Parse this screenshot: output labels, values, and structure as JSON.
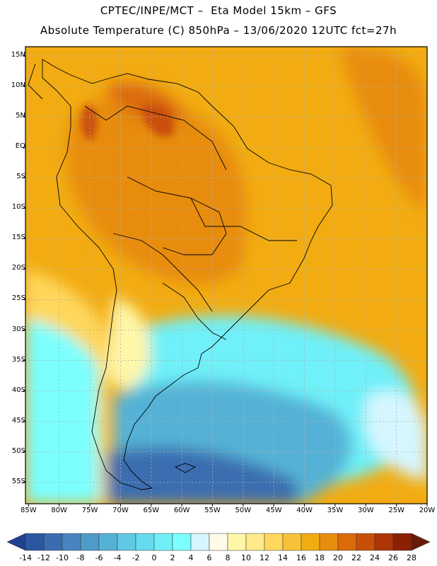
{
  "title": {
    "line1": "CPTEC/INPE/MCT –  Eta Model 15km – GFS",
    "line2": "Absolute Temperature (C) 850hPa – 13/06/2020 12UTC fct=27h"
  },
  "map": {
    "lat_labels": [
      "15N",
      "10N",
      "5N",
      "EQ",
      "5S",
      "10S",
      "15S",
      "20S",
      "25S",
      "30S",
      "35S",
      "40S",
      "45S",
      "50S",
      "55S"
    ],
    "lat_values": [
      15,
      10,
      5,
      0,
      -5,
      -10,
      -15,
      -20,
      -25,
      -30,
      -35,
      -40,
      -45,
      -50,
      -55
    ],
    "lon_labels": [
      "85W",
      "80W",
      "75W",
      "70W",
      "65W",
      "60W",
      "55W",
      "50W",
      "45W",
      "40W",
      "35W",
      "30W",
      "25W",
      "20W"
    ],
    "lon_values": [
      -85,
      -80,
      -75,
      -70,
      -65,
      -60,
      -55,
      -50,
      -45,
      -40,
      -35,
      -30,
      -25,
      -20
    ],
    "extent": {
      "lon_min": -85.5,
      "lon_max": -20,
      "lat_min": -58.5,
      "lat_max": 16.5
    }
  },
  "colorbar": {
    "labels": [
      "-14",
      "-12",
      "-10",
      "-8",
      "-6",
      "-4",
      "-2",
      "0",
      "2",
      "4",
      "6",
      "8",
      "10",
      "12",
      "14",
      "16",
      "18",
      "20",
      "22",
      "24",
      "26",
      "28"
    ],
    "colors": [
      "#1f3f8f",
      "#2b57a0",
      "#3a6db0",
      "#4a84c0",
      "#4e9bc8",
      "#55b2d6",
      "#5fc9e4",
      "#66dbef",
      "#6ff0f8",
      "#7cffff",
      "#d6f6ff",
      "#fffbe6",
      "#fff6a8",
      "#ffe98a",
      "#ffd75c",
      "#f8c238",
      "#f2ac12",
      "#e88c0c",
      "#db6a0a",
      "#c94f08",
      "#ad3506",
      "#8a2004",
      "#661a08"
    ]
  }
}
